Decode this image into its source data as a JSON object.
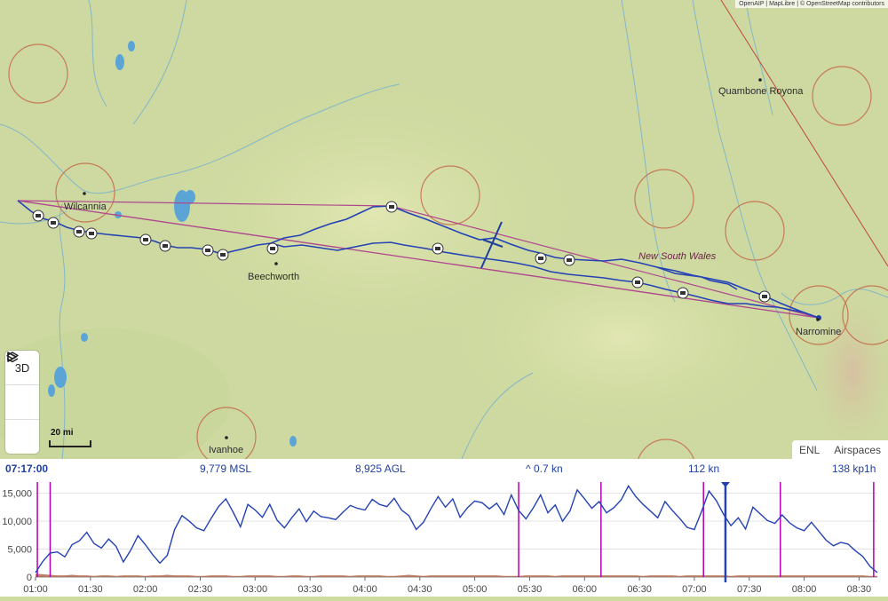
{
  "attribution": "OpenAIP | MapLibre | © OpenStreetMap contributors",
  "places": {
    "wilcannia": "Wilcannia",
    "beechworth": "Beechworth",
    "narromine": "Narromine",
    "ivanhoe": "Ivanhoe",
    "quambone": "Quambone Royona"
  },
  "region_label": "New South Wales",
  "controls": {
    "view3d": "3D",
    "play_icon": "play-icon",
    "layers_icon": "layers-icon"
  },
  "scale": "20 mi",
  "layer_tabs": [
    "ENL",
    "Airspaces"
  ],
  "readout": {
    "time": "07:17:00",
    "msl": "9,779 MSL",
    "agl": "8,925 AGL",
    "vario": "^ 0.7 kn",
    "speed": "112 kn",
    "avg": "138 kp1h"
  },
  "colors": {
    "track": "#2442b5",
    "task": "#b0478f",
    "airspace": "#c46a4a",
    "enl": "#b06a4e",
    "event": "#b400b4"
  },
  "chart_data": {
    "type": "line",
    "x_ticks": [
      "01:00",
      "01:30",
      "02:00",
      "02:30",
      "03:00",
      "03:30",
      "04:00",
      "04:30",
      "05:00",
      "05:30",
      "06:00",
      "06:30",
      "07:00",
      "07:30",
      "08:00",
      "08:30"
    ],
    "y_ticks": [
      "0",
      "5,000",
      "10,000",
      "15,000"
    ],
    "ylim": [
      0,
      17000
    ],
    "x_range_min": [
      60,
      520
    ],
    "cursor_min": 437,
    "event_markers_min": [
      61,
      68,
      324,
      369,
      425,
      467,
      518
    ],
    "series": [
      {
        "values_min": [
          60,
          64,
          68,
          72,
          76,
          80,
          84,
          88,
          92,
          96,
          100,
          104,
          108,
          112,
          116,
          120,
          124,
          128,
          132,
          136,
          140,
          144,
          148,
          152,
          156,
          160,
          164,
          168,
          172,
          176,
          180,
          184,
          188,
          192,
          196,
          200,
          204,
          208,
          212,
          216,
          220,
          224,
          228,
          232,
          236,
          240,
          244,
          248,
          252,
          256,
          260,
          264,
          268,
          272,
          276,
          280,
          284,
          288,
          292,
          296,
          300,
          304,
          308,
          312,
          316,
          320,
          324,
          328,
          332,
          336,
          340,
          344,
          348,
          352,
          356,
          360,
          364,
          368,
          372,
          376,
          380,
          384,
          388,
          392,
          396,
          400,
          404,
          408,
          412,
          416,
          420,
          424,
          428,
          432,
          436,
          440,
          444,
          448,
          452,
          456,
          460,
          464,
          468,
          472,
          476,
          480,
          484,
          488,
          492,
          496,
          500,
          504,
          508,
          512,
          516,
          520
        ],
        "values": [
          800,
          2800,
          4300,
          4500,
          3600,
          5800,
          6500,
          8000,
          6000,
          5200,
          6800,
          5500,
          2700,
          4800,
          7400,
          5800,
          4000,
          2500,
          3900,
          8500,
          11000,
          10000,
          8800,
          8300,
          10500,
          12600,
          14000,
          11600,
          9000,
          13000,
          12000,
          10700,
          13000,
          10200,
          8800,
          10600,
          12200,
          9900,
          11800,
          10800,
          10600,
          10300,
          11600,
          12800,
          12300,
          12000,
          13900,
          13000,
          12600,
          14100,
          12000,
          11000,
          8500,
          9800,
          12200,
          14400,
          12500,
          14000,
          10700,
          12400,
          13600,
          13300,
          12200,
          13200,
          11200,
          14700,
          11900,
          10400,
          12400,
          14700,
          11500,
          12900,
          10000,
          11800,
          15600,
          14000,
          12300,
          13500,
          11500,
          12400,
          13800,
          16300,
          14400,
          13000,
          11800,
          10600,
          13500,
          11900,
          10500,
          8900,
          8500,
          11800,
          15400,
          13700,
          11200,
          9200,
          10600,
          8600,
          12500,
          11300,
          10100,
          9600,
          11100,
          9700,
          8800,
          8300,
          9800,
          8200,
          6600,
          5600,
          6200,
          5900,
          4700,
          3700,
          1900,
          800
        ],
        "enl_values": [
          600,
          500,
          400,
          300,
          300,
          400,
          300,
          300,
          200,
          300,
          300,
          200,
          300,
          300,
          300,
          200,
          300,
          300,
          400,
          300,
          300,
          300,
          200,
          200,
          300,
          300,
          300,
          200,
          200,
          300,
          300,
          300,
          300,
          200,
          200,
          300,
          300,
          200,
          200,
          300,
          300,
          300,
          300,
          200,
          300,
          300,
          300,
          300,
          200,
          200,
          300,
          400,
          300,
          200,
          300,
          300,
          300,
          300,
          300,
          300,
          300,
          300,
          300,
          300,
          200,
          200,
          200,
          300,
          300,
          300,
          300,
          200,
          300,
          300,
          300,
          300,
          300,
          300,
          300,
          300,
          300,
          300,
          300,
          200,
          300,
          300,
          300,
          300,
          200,
          300,
          300,
          300,
          300,
          300,
          300,
          200,
          300,
          300,
          300,
          300,
          300,
          300,
          300,
          300,
          300,
          300,
          300,
          300,
          300,
          300,
          300,
          300,
          300,
          300,
          200,
          200
        ]
      }
    ]
  }
}
